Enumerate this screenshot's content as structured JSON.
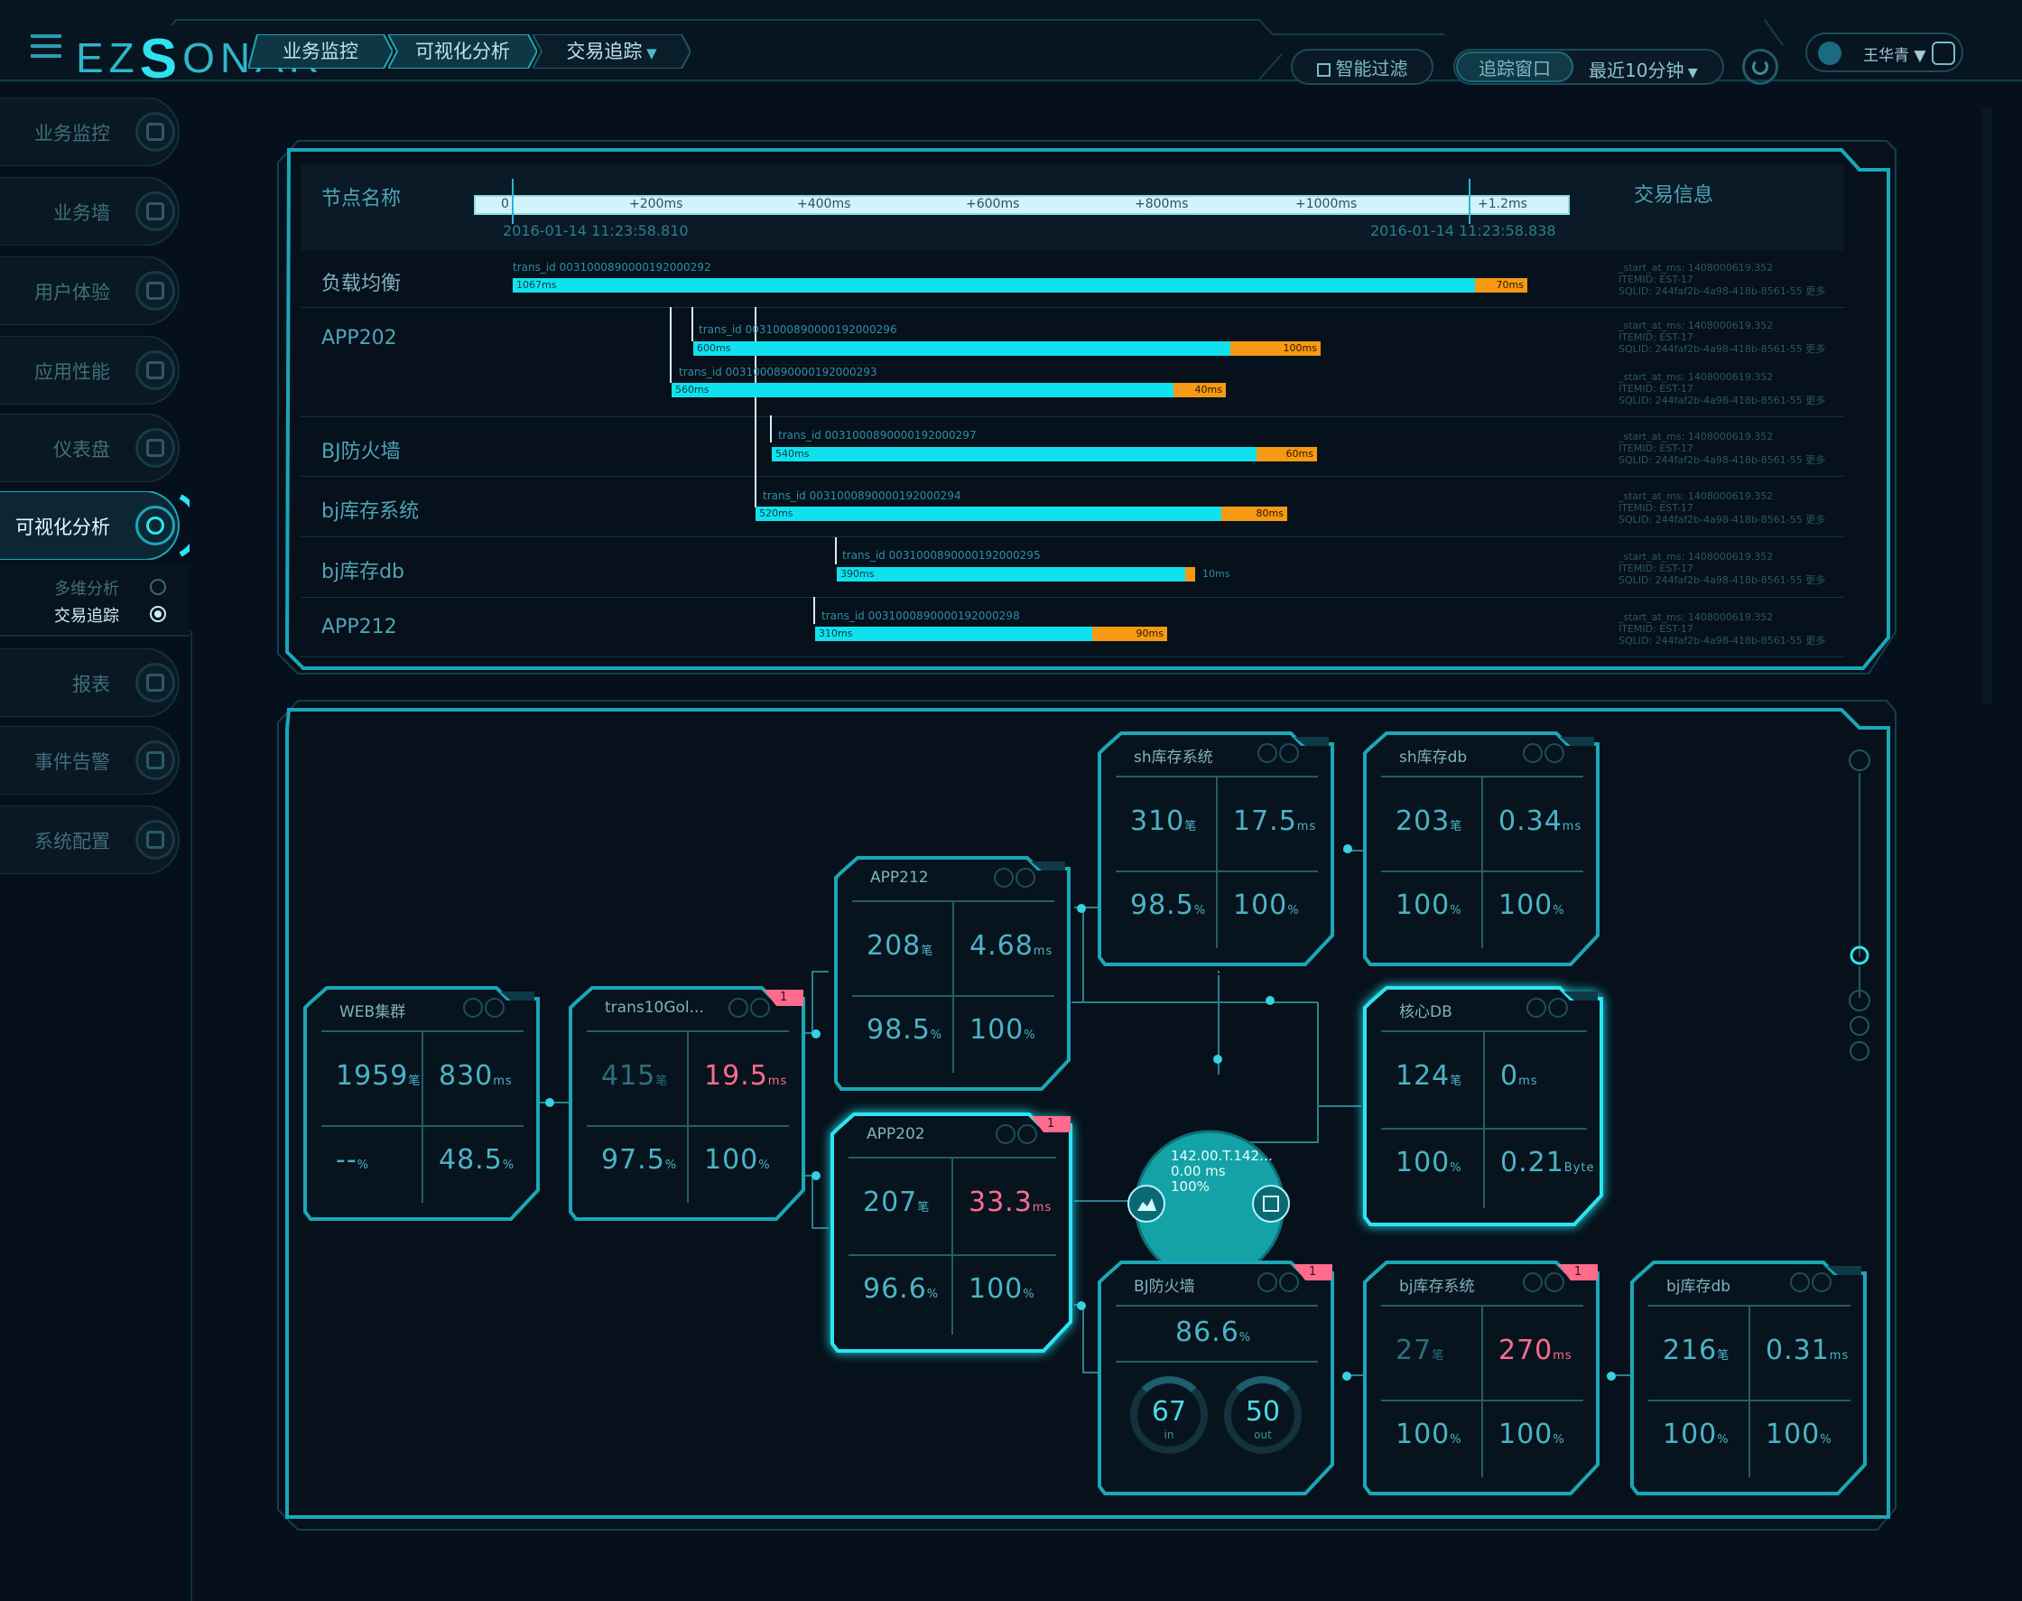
{
  "header": {
    "logo_prefix": "EZ",
    "logo_s": "S",
    "logo_suffix": "ONAR",
    "breadcrumbs": [
      "业务监控",
      "可视化分析",
      "交易追踪"
    ],
    "smart_filter": "智能过滤",
    "trace_window": "追踪窗口",
    "time_range": "最近10分钟",
    "user_name": "王华青"
  },
  "sidebar": {
    "items": [
      {
        "label": "业务监控"
      },
      {
        "label": "业务墙"
      },
      {
        "label": "用户体验"
      },
      {
        "label": "应用性能"
      },
      {
        "label": "仪表盘"
      },
      {
        "label": "可视化分析"
      },
      {
        "label": "报表"
      },
      {
        "label": "事件告警"
      },
      {
        "label": "系统配置"
      }
    ],
    "sub_items": [
      {
        "label": "多维分析"
      },
      {
        "label": "交易追踪"
      }
    ]
  },
  "trace": {
    "node_header": "节点名称",
    "info_header": "交易信息",
    "ticks": [
      "0",
      "+200ms",
      "+400ms",
      "+600ms",
      "+800ms",
      "+1000ms",
      "+1.2ms"
    ],
    "start_time": "2016-01-14 11:23:58.810",
    "end_time": "2016-01-14 11:23:58.838",
    "rows": [
      {
        "name": "负载均衡"
      },
      {
        "name": "APP202"
      },
      {
        "name": "BJ防火墙"
      },
      {
        "name": "bj库存系统"
      },
      {
        "name": "bj库存db"
      },
      {
        "name": "APP212"
      }
    ],
    "bars": [
      {
        "trans": "trans_id 0031000890000192000292",
        "main": "1067ms",
        "extra": "70ms",
        "main_frac": 0.878,
        "extra_frac": 0.048
      },
      {
        "trans": "trans_id 0031000890000192000296",
        "main": "600ms",
        "extra": "100ms",
        "main_frac": 0.49,
        "extra_frac": 0.082
      },
      {
        "trans": "trans_id 0031000890000192000293",
        "main": "560ms",
        "extra": "40ms",
        "main_frac": 0.458,
        "extra_frac": 0.048
      },
      {
        "trans": "trans_id 0031000890000192000297",
        "main": "540ms",
        "extra": "60ms",
        "main_frac": 0.442,
        "extra_frac": 0.055
      },
      {
        "trans": "trans_id 0031000890000192000294",
        "main": "520ms",
        "extra": "80ms",
        "main_frac": 0.425,
        "extra_frac": 0.06
      },
      {
        "trans": "trans_id 0031000890000192000295",
        "main": "390ms",
        "extra": "10ms",
        "main_frac": 0.318,
        "extra_frac": 0.009
      },
      {
        "trans": "trans_id 0031000890000192000298",
        "main": "310ms",
        "extra": "90ms",
        "main_frac": 0.253,
        "extra_frac": 0.068
      }
    ],
    "info_line1": "_start_at_ms: 1408000619.352",
    "info_line2": "ITEMID: EST-17",
    "info_line3": "SQLID: 244faf2b-4a98-418b-8561-55",
    "more": "更多"
  },
  "topology": {
    "cards": {
      "web": {
        "title": "WEB集群",
        "v1": "1959",
        "u1": "笔",
        "v2": "830",
        "u2": "ms",
        "v3": "--",
        "u3": "%",
        "v4": "48.5",
        "u4": "%"
      },
      "trans": {
        "title": "trans10Gol...",
        "v1": "415",
        "u1": "笔",
        "v2": "19.5",
        "u2": "ms",
        "v3": "97.5",
        "u3": "%",
        "v4": "100",
        "u4": "%",
        "alert": "1"
      },
      "app212": {
        "title": "APP212",
        "v1": "208",
        "u1": "笔",
        "v2": "4.68",
        "u2": "ms",
        "v3": "98.5",
        "u3": "%",
        "v4": "100",
        "u4": "%"
      },
      "app202": {
        "title": "APP202",
        "v1": "207",
        "u1": "笔",
        "v2": "33.3",
        "u2": "ms",
        "v3": "96.6",
        "u3": "%",
        "v4": "100",
        "u4": "%",
        "alert": "1"
      },
      "shsys": {
        "title": "sh库存系统",
        "v1": "310",
        "u1": "笔",
        "v2": "17.5",
        "u2": "ms",
        "v3": "98.5",
        "u3": "%",
        "v4": "100",
        "u4": "%"
      },
      "shdb": {
        "title": "sh库存db",
        "v1": "203",
        "u1": "笔",
        "v2": "0.34",
        "u2": "ms",
        "v3": "100",
        "u3": "%",
        "v4": "100",
        "u4": "%"
      },
      "coredb": {
        "title": "核心DB",
        "v1": "124",
        "u1": "笔",
        "v2": "0",
        "u2": "ms",
        "v3": "100",
        "u3": "%",
        "v4": "0.21",
        "u4": "Byte"
      },
      "bjfw": {
        "title": "BJ防火墙",
        "pct": "86.6",
        "pct_u": "%",
        "in": "67",
        "in_l": "in",
        "out": "50",
        "out_l": "out",
        "alert": "1"
      },
      "bjsys": {
        "title": "bj库存系统",
        "v1": "27",
        "u1": "笔",
        "v2": "270",
        "u2": "ms",
        "v3": "100",
        "u3": "%",
        "v4": "100",
        "u4": "%",
        "alert": "1"
      },
      "bjdb": {
        "title": "bj库存db",
        "v1": "216",
        "u1": "笔",
        "v2": "0.31",
        "u2": "ms",
        "v3": "100",
        "u3": "%",
        "v4": "100",
        "u4": "%"
      }
    },
    "hub": {
      "line1": "142.00.T.142…",
      "line2": "0.00 ms",
      "line3": "100%"
    }
  },
  "colors": {
    "accent": "#0fe2ee",
    "warn": "#f59a12",
    "alert": "#ff6b8d",
    "frame": "#1aa7b8"
  }
}
